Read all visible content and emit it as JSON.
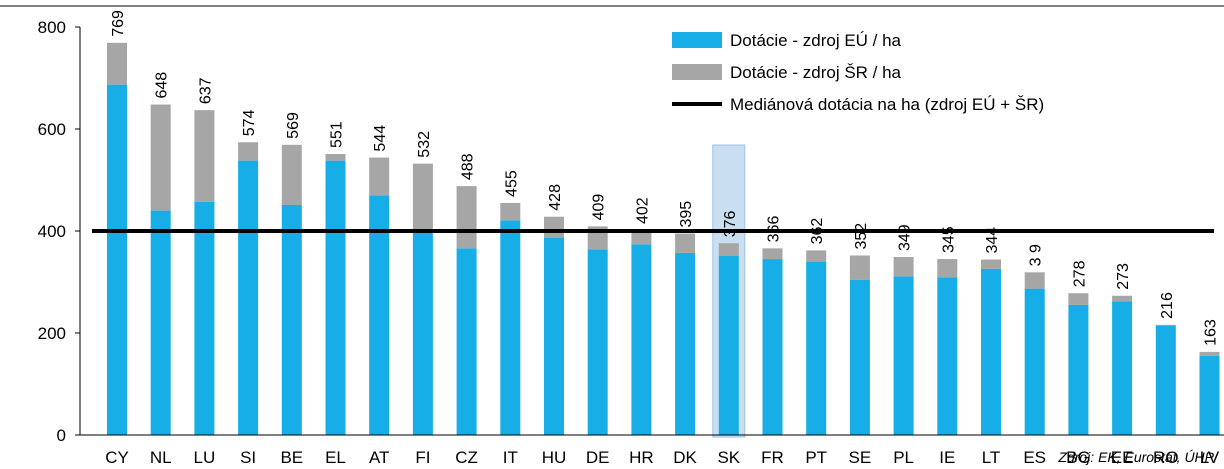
{
  "chart_data": {
    "type": "stacked_bar",
    "categories": [
      "CY",
      "NL",
      "LU",
      "SI",
      "BE",
      "EL",
      "AT",
      "FI",
      "CZ",
      "IT",
      "HU",
      "DE",
      "HR",
      "DK",
      "SK",
      "FR",
      "PT",
      "SE",
      "PL",
      "IE",
      "LT",
      "ES",
      "BG",
      "EE",
      "RO",
      "LV"
    ],
    "series": [
      {
        "name": "Dotácie - zdroj EÚ / ha",
        "color": "#17aee8",
        "values": [
          687,
          440,
          457,
          538,
          451,
          538,
          470,
          398,
          366,
          421,
          387,
          364,
          374,
          357,
          351,
          345,
          340,
          304,
          311,
          309,
          326,
          287,
          255,
          262,
          215,
          155
        ]
      },
      {
        "name": "Dotácie - zdroj ŠR / ha",
        "color": "#a6a6a6",
        "values": [
          82,
          208,
          180,
          36,
          118,
          13,
          74,
          134,
          122,
          34,
          41,
          45,
          28,
          38,
          25,
          21,
          22,
          48,
          38,
          36,
          18,
          32,
          23,
          11,
          1,
          8
        ]
      }
    ],
    "total_labels": [
      "769",
      "648",
      "637",
      "574",
      "569",
      "551",
      "544",
      "532",
      "488",
      "455",
      "428",
      "409",
      "402",
      "395",
      "376",
      "366",
      "362",
      "352",
      "349",
      "345",
      "344",
      "3 9",
      "278",
      "273",
      "216",
      "163"
    ],
    "median": {
      "name": "Mediánová dotácia na ha (zdroj EÚ + ŠR)",
      "value": 400,
      "color": "#000000"
    },
    "highlight": "SK",
    "ylim": [
      0,
      800
    ],
    "yticks": [
      0,
      200,
      400,
      600,
      800
    ],
    "source": "Zdroj: EK, Eurostat, ÚHP"
  }
}
